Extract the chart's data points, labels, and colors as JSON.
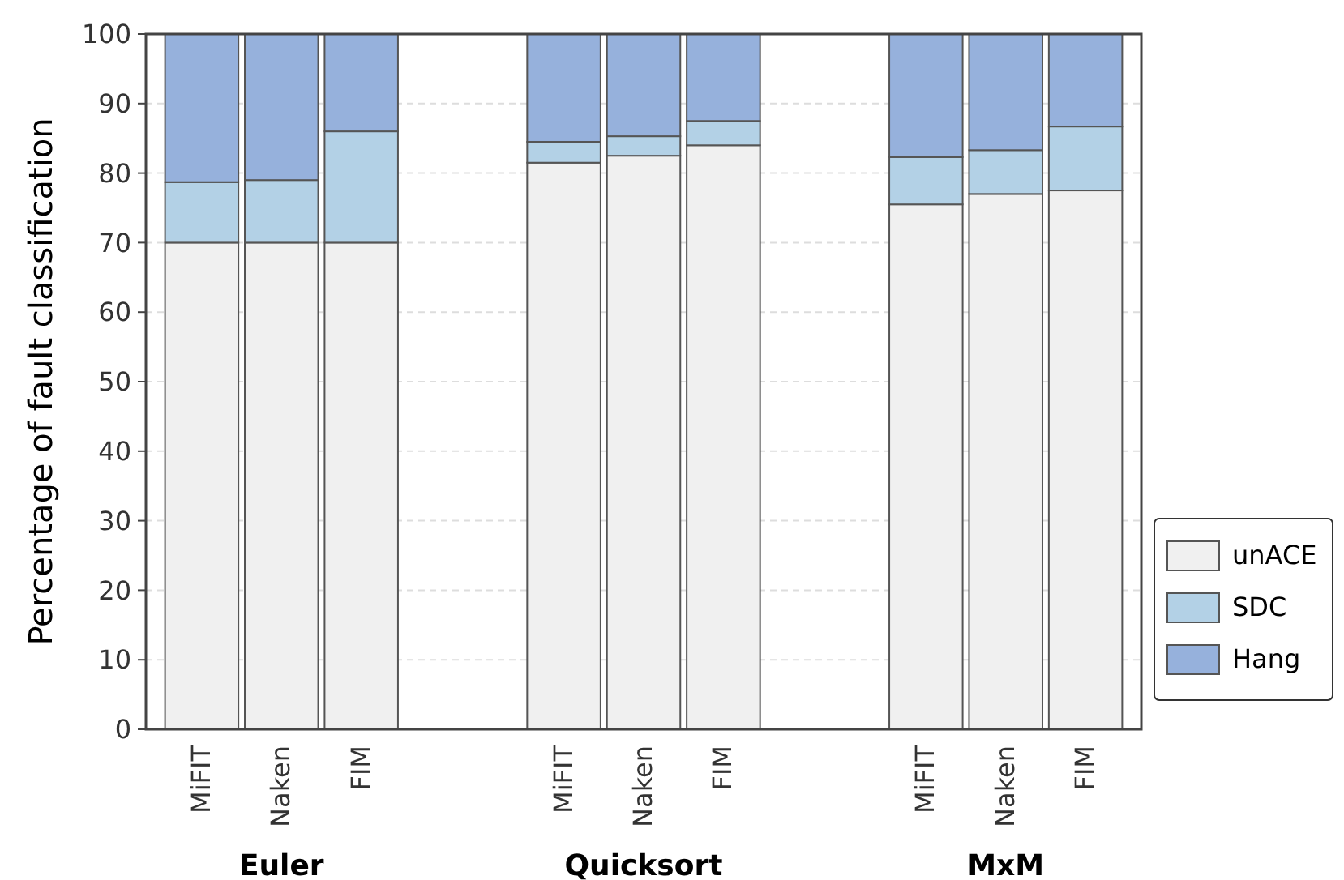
{
  "chart_data": {
    "type": "bar",
    "stacked": true,
    "ylabel": "Percentage of fault classification",
    "categories": [
      "MiFIT",
      "Naken",
      "FIM",
      null,
      null,
      "MiFIT",
      "Naken",
      "FIM",
      null,
      null,
      "MiFIT",
      "Naken",
      "FIM"
    ],
    "series": [
      {
        "name": "unACE",
        "color": "#f0f0f0",
        "values": [
          70,
          70,
          70,
          null,
          null,
          81.5,
          82.5,
          84,
          null,
          null,
          75.5,
          77,
          77.5
        ]
      },
      {
        "name": "SDC",
        "color": "#b3d1e6",
        "values": [
          8.7,
          9,
          16,
          null,
          null,
          3,
          2.8,
          3.5,
          null,
          null,
          6.8,
          6.3,
          9.2
        ]
      },
      {
        "name": "Hang",
        "color": "#96b1dc",
        "values": [
          21.3,
          21,
          14,
          null,
          null,
          15.5,
          14.7,
          12.5,
          null,
          null,
          17.7,
          16.7,
          13.3
        ]
      }
    ],
    "ylim": [
      0,
      100
    ],
    "yticks": [
      0,
      10,
      20,
      30,
      40,
      50,
      60,
      70,
      80,
      90,
      100
    ],
    "grid": "y",
    "legend": "right",
    "annotations": [
      "Euler",
      "Quicksort",
      "MxM"
    ]
  }
}
